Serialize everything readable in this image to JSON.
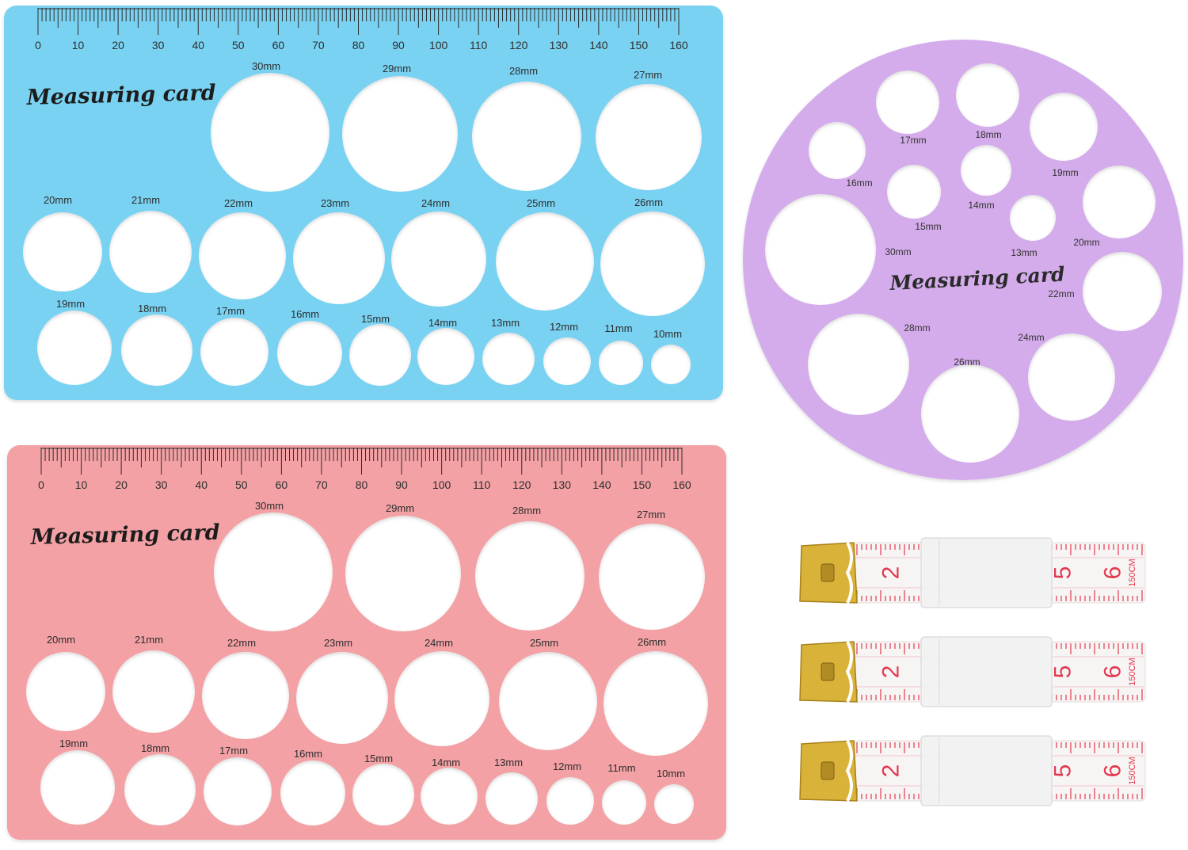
{
  "colors": {
    "blue_card": "#79d2f2",
    "pink_card": "#f3a1a5",
    "purple_card": "#d4aceb",
    "ink": "#2a2a2a",
    "tape_red": "#e2384f",
    "tape_white": "#f7f5f4",
    "clip_gold": "#d9b23a"
  },
  "rect_card": {
    "title": "Measuring card",
    "ruler_ticks": [
      "0",
      "10",
      "20",
      "30",
      "40",
      "50",
      "60",
      "70",
      "80",
      "90",
      "100",
      "110",
      "120",
      "130",
      "140",
      "150",
      "160"
    ],
    "row1": [
      "30mm",
      "29mm",
      "28mm",
      "27mm"
    ],
    "row2": [
      "20mm",
      "21mm",
      "22mm",
      "23mm",
      "24mm",
      "25mm",
      "26mm"
    ],
    "row3": [
      "19mm",
      "18mm",
      "17mm",
      "16mm",
      "15mm",
      "14mm",
      "13mm",
      "12mm",
      "11mm",
      "10mm"
    ]
  },
  "round_card": {
    "title": "Measuring card",
    "labels": [
      "17mm",
      "18mm",
      "19mm",
      "16mm",
      "14mm",
      "15mm",
      "20mm",
      "30mm",
      "13mm",
      "22mm",
      "28mm",
      "24mm",
      "26mm"
    ]
  },
  "tape": {
    "digits": [
      "2",
      "5",
      "6"
    ],
    "length_label": "150CM"
  }
}
